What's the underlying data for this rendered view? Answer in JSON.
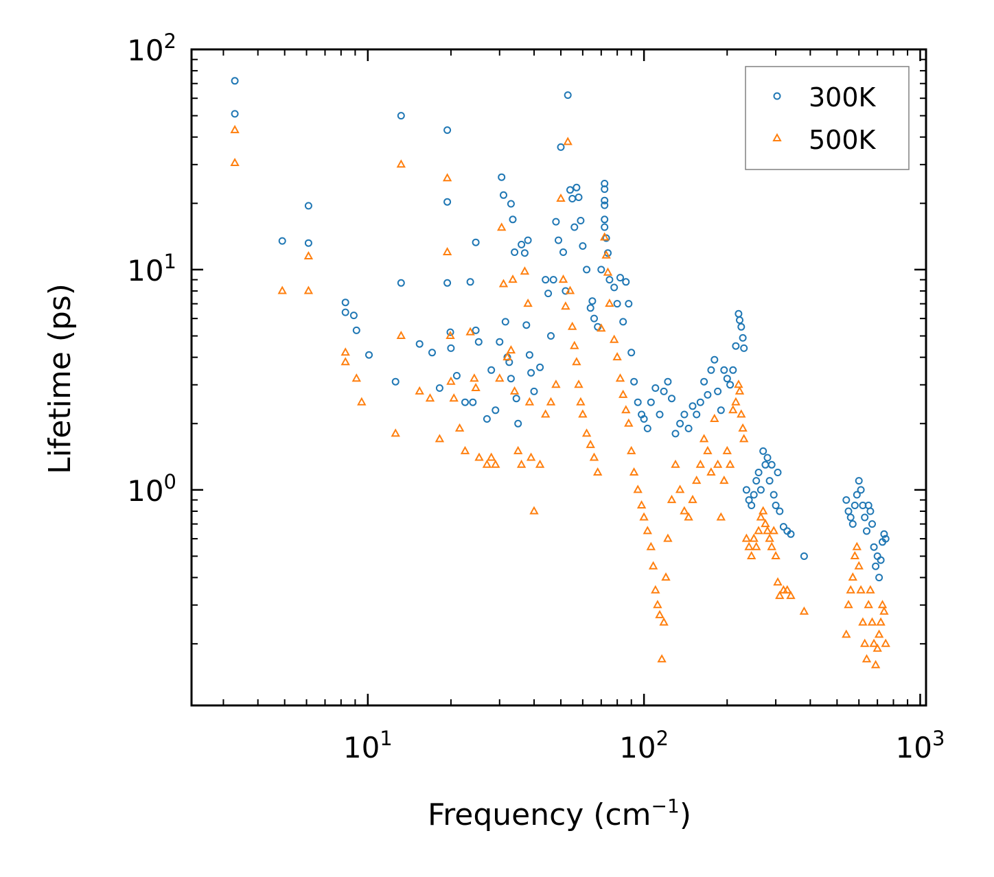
{
  "chart_data": {
    "type": "scatter",
    "title": "",
    "xlabel": "Frequency (cm",
    "xlabel_sup": "−1",
    "xlabel_close": ")",
    "ylabel": "Lifetime (ps)",
    "xscale": "log",
    "yscale": "log",
    "xlim": [
      2.3,
      1050
    ],
    "ylim": [
      0.105,
      100
    ],
    "x_ticks": [
      {
        "value": 10,
        "base": "10",
        "exp": "1"
      },
      {
        "value": 100,
        "base": "10",
        "exp": "2"
      },
      {
        "value": 1000,
        "base": "10",
        "exp": "3"
      }
    ],
    "y_ticks": [
      {
        "value": 1,
        "base": "10",
        "exp": "0"
      },
      {
        "value": 10,
        "base": "10",
        "exp": "1"
      },
      {
        "value": 100,
        "base": "10",
        "exp": "2"
      }
    ],
    "legend_position": "top-right",
    "series": [
      {
        "name": "300K",
        "marker": "circle",
        "color": "#1f77b4",
        "points": [
          [
            3.3,
            72
          ],
          [
            3.3,
            51
          ],
          [
            4.9,
            13.5
          ],
          [
            6.1,
            19.5
          ],
          [
            6.1,
            13.2
          ],
          [
            8.3,
            7.1
          ],
          [
            8.3,
            6.4
          ],
          [
            8.9,
            6.2
          ],
          [
            9.1,
            5.3
          ],
          [
            10.1,
            4.1
          ],
          [
            12.6,
            3.1
          ],
          [
            13.2,
            50
          ],
          [
            13.2,
            8.7
          ],
          [
            15.4,
            4.6
          ],
          [
            17.1,
            4.2
          ],
          [
            18.2,
            2.9
          ],
          [
            19.4,
            43
          ],
          [
            19.4,
            20.3
          ],
          [
            19.4,
            8.7
          ],
          [
            19.9,
            5.2
          ],
          [
            20,
            4.4
          ],
          [
            21,
            3.3
          ],
          [
            22.5,
            2.5
          ],
          [
            23.5,
            8.8
          ],
          [
            24,
            2.5
          ],
          [
            24.6,
            13.3
          ],
          [
            24.6,
            5.3
          ],
          [
            25.2,
            4.7
          ],
          [
            27,
            2.1
          ],
          [
            28,
            3.5
          ],
          [
            29,
            2.3
          ],
          [
            30,
            4.7
          ],
          [
            30.5,
            26.3
          ],
          [
            31,
            21.8
          ],
          [
            31.5,
            5.8
          ],
          [
            32,
            4
          ],
          [
            32.5,
            3.8
          ],
          [
            33,
            19.9
          ],
          [
            33,
            3.2
          ],
          [
            33.5,
            16.9
          ],
          [
            34,
            12
          ],
          [
            34.5,
            2.6
          ],
          [
            35,
            2
          ],
          [
            36,
            13
          ],
          [
            37,
            11.9
          ],
          [
            37.5,
            5.6
          ],
          [
            38,
            13.6
          ],
          [
            38.5,
            4.1
          ],
          [
            39,
            3.4
          ],
          [
            40,
            2.8
          ],
          [
            42,
            3.6
          ],
          [
            44,
            9
          ],
          [
            45,
            7.8
          ],
          [
            46,
            5
          ],
          [
            47,
            9
          ],
          [
            48,
            16.5
          ],
          [
            49,
            13.6
          ],
          [
            50,
            36
          ],
          [
            51,
            12
          ],
          [
            52,
            8
          ],
          [
            53,
            62
          ],
          [
            54,
            23
          ],
          [
            55,
            21
          ],
          [
            56,
            15.6
          ],
          [
            57,
            23.6
          ],
          [
            58,
            21.3
          ],
          [
            59,
            16.7
          ],
          [
            60,
            12.8
          ],
          [
            62,
            10
          ],
          [
            64,
            6.7
          ],
          [
            65,
            7.2
          ],
          [
            66,
            6
          ],
          [
            68,
            5.5
          ],
          [
            70,
            10
          ],
          [
            72,
            24.6
          ],
          [
            72,
            23.2
          ],
          [
            72,
            20.6
          ],
          [
            72,
            19.6
          ],
          [
            72,
            16.9
          ],
          [
            72,
            15.6
          ],
          [
            73,
            13.9
          ],
          [
            74,
            11.9
          ],
          [
            75,
            9
          ],
          [
            78,
            8.3
          ],
          [
            80,
            7
          ],
          [
            82,
            9.2
          ],
          [
            84,
            5.8
          ],
          [
            86,
            8.8
          ],
          [
            88,
            7
          ],
          [
            90,
            4.2
          ],
          [
            92,
            3.1
          ],
          [
            95,
            2.5
          ],
          [
            98,
            2.2
          ],
          [
            100,
            2.1
          ],
          [
            103,
            1.9
          ],
          [
            106,
            2.5
          ],
          [
            110,
            2.9
          ],
          [
            114,
            2.2
          ],
          [
            118,
            2.8
          ],
          [
            122,
            3.1
          ],
          [
            126,
            2.6
          ],
          [
            130,
            1.8
          ],
          [
            135,
            2
          ],
          [
            140,
            2.2
          ],
          [
            145,
            1.9
          ],
          [
            150,
            2.4
          ],
          [
            155,
            2.2
          ],
          [
            160,
            2.5
          ],
          [
            165,
            3.1
          ],
          [
            170,
            2.7
          ],
          [
            175,
            3.5
          ],
          [
            180,
            3.9
          ],
          [
            185,
            2.8
          ],
          [
            190,
            2.3
          ],
          [
            195,
            3.5
          ],
          [
            200,
            3.2
          ],
          [
            205,
            3
          ],
          [
            210,
            3.5
          ],
          [
            215,
            4.5
          ],
          [
            220,
            6.3
          ],
          [
            222,
            5.9
          ],
          [
            225,
            5.5
          ],
          [
            228,
            4.9
          ],
          [
            230,
            4.4
          ],
          [
            235,
            1
          ],
          [
            240,
            0.9
          ],
          [
            245,
            0.85
          ],
          [
            250,
            0.95
          ],
          [
            255,
            1.1
          ],
          [
            260,
            1.2
          ],
          [
            265,
            1
          ],
          [
            270,
            1.5
          ],
          [
            275,
            1.3
          ],
          [
            280,
            1.4
          ],
          [
            285,
            1.1
          ],
          [
            290,
            1.3
          ],
          [
            295,
            0.95
          ],
          [
            300,
            0.85
          ],
          [
            305,
            1.2
          ],
          [
            310,
            0.8
          ],
          [
            320,
            0.68
          ],
          [
            330,
            0.65
          ],
          [
            340,
            0.63
          ],
          [
            380,
            0.5
          ],
          [
            540,
            0.9
          ],
          [
            550,
            0.8
          ],
          [
            560,
            0.75
          ],
          [
            570,
            0.7
          ],
          [
            580,
            0.85
          ],
          [
            590,
            0.95
          ],
          [
            600,
            1.1
          ],
          [
            610,
            1
          ],
          [
            620,
            0.85
          ],
          [
            630,
            0.75
          ],
          [
            640,
            0.65
          ],
          [
            650,
            0.85
          ],
          [
            660,
            0.8
          ],
          [
            670,
            0.7
          ],
          [
            680,
            0.55
          ],
          [
            690,
            0.45
          ],
          [
            700,
            0.5
          ],
          [
            710,
            0.4
          ],
          [
            720,
            0.48
          ],
          [
            730,
            0.58
          ],
          [
            740,
            0.63
          ],
          [
            750,
            0.6
          ]
        ]
      },
      {
        "name": "500K",
        "marker": "triangle",
        "color": "#ff7f0e",
        "points": [
          [
            3.3,
            43
          ],
          [
            3.3,
            30.5
          ],
          [
            4.9,
            8
          ],
          [
            6.1,
            11.5
          ],
          [
            6.1,
            8
          ],
          [
            8.3,
            4.2
          ],
          [
            8.3,
            3.8
          ],
          [
            9.1,
            3.2
          ],
          [
            9.5,
            2.5
          ],
          [
            12.6,
            1.8
          ],
          [
            13.2,
            30
          ],
          [
            13.2,
            5
          ],
          [
            15.4,
            2.8
          ],
          [
            16.8,
            2.6
          ],
          [
            18.2,
            1.7
          ],
          [
            19.4,
            26
          ],
          [
            19.4,
            12
          ],
          [
            19.9,
            5
          ],
          [
            20,
            3.1
          ],
          [
            20.5,
            2.6
          ],
          [
            21.5,
            1.9
          ],
          [
            22.5,
            1.5
          ],
          [
            23.5,
            5.2
          ],
          [
            24.3,
            3.2
          ],
          [
            24.6,
            2.9
          ],
          [
            25.3,
            1.4
          ],
          [
            27,
            1.3
          ],
          [
            28,
            1.4
          ],
          [
            29,
            1.3
          ],
          [
            30,
            3.2
          ],
          [
            30.5,
            15.5
          ],
          [
            31,
            8.6
          ],
          [
            32,
            4
          ],
          [
            33,
            4.3
          ],
          [
            33.5,
            9
          ],
          [
            34,
            2.8
          ],
          [
            35,
            1.5
          ],
          [
            36,
            1.3
          ],
          [
            37,
            9.8
          ],
          [
            38,
            7
          ],
          [
            38.5,
            2.5
          ],
          [
            39,
            1.4
          ],
          [
            40,
            0.8
          ],
          [
            42,
            1.3
          ],
          [
            44,
            2.2
          ],
          [
            46,
            2.5
          ],
          [
            48,
            3
          ],
          [
            50,
            21
          ],
          [
            51,
            9
          ],
          [
            52,
            6.8
          ],
          [
            53,
            38
          ],
          [
            54,
            8
          ],
          [
            55,
            5.5
          ],
          [
            56,
            4.5
          ],
          [
            57,
            3.8
          ],
          [
            58,
            3
          ],
          [
            59,
            2.5
          ],
          [
            60,
            2.2
          ],
          [
            62,
            1.8
          ],
          [
            64,
            1.6
          ],
          [
            66,
            1.4
          ],
          [
            68,
            1.2
          ],
          [
            70,
            5.4
          ],
          [
            72,
            14
          ],
          [
            73,
            11.6
          ],
          [
            74,
            9.7
          ],
          [
            75,
            7
          ],
          [
            78,
            4.8
          ],
          [
            80,
            4
          ],
          [
            82,
            3.2
          ],
          [
            84,
            2.7
          ],
          [
            86,
            2.3
          ],
          [
            88,
            2
          ],
          [
            90,
            1.5
          ],
          [
            92,
            1.2
          ],
          [
            95,
            1
          ],
          [
            98,
            0.85
          ],
          [
            100,
            0.75
          ],
          [
            103,
            0.65
          ],
          [
            106,
            0.55
          ],
          [
            108,
            0.45
          ],
          [
            110,
            0.35
          ],
          [
            112,
            0.3
          ],
          [
            114,
            0.27
          ],
          [
            116,
            0.17
          ],
          [
            118,
            0.25
          ],
          [
            120,
            0.4
          ],
          [
            122,
            0.6
          ],
          [
            126,
            0.9
          ],
          [
            130,
            1.3
          ],
          [
            135,
            1
          ],
          [
            140,
            0.8
          ],
          [
            145,
            0.75
          ],
          [
            150,
            0.9
          ],
          [
            155,
            1.1
          ],
          [
            160,
            1.3
          ],
          [
            165,
            1.7
          ],
          [
            170,
            1.5
          ],
          [
            175,
            1.2
          ],
          [
            180,
            2.1
          ],
          [
            185,
            1.3
          ],
          [
            190,
            0.75
          ],
          [
            195,
            1.1
          ],
          [
            200,
            1.5
          ],
          [
            205,
            1.3
          ],
          [
            210,
            2.3
          ],
          [
            215,
            2.5
          ],
          [
            220,
            3
          ],
          [
            222,
            2.8
          ],
          [
            225,
            2.2
          ],
          [
            228,
            1.9
          ],
          [
            230,
            1.7
          ],
          [
            235,
            0.6
          ],
          [
            240,
            0.55
          ],
          [
            245,
            0.5
          ],
          [
            250,
            0.6
          ],
          [
            255,
            0.55
          ],
          [
            260,
            0.65
          ],
          [
            265,
            0.75
          ],
          [
            270,
            0.8
          ],
          [
            275,
            0.7
          ],
          [
            280,
            0.65
          ],
          [
            285,
            0.6
          ],
          [
            290,
            0.55
          ],
          [
            295,
            0.65
          ],
          [
            300,
            0.5
          ],
          [
            305,
            0.38
          ],
          [
            310,
            0.33
          ],
          [
            320,
            0.35
          ],
          [
            330,
            0.35
          ],
          [
            340,
            0.33
          ],
          [
            380,
            0.28
          ],
          [
            540,
            0.22
          ],
          [
            550,
            0.3
          ],
          [
            560,
            0.35
          ],
          [
            570,
            0.4
          ],
          [
            580,
            0.5
          ],
          [
            590,
            0.55
          ],
          [
            600,
            0.45
          ],
          [
            610,
            0.35
          ],
          [
            620,
            0.25
          ],
          [
            630,
            0.2
          ],
          [
            640,
            0.17
          ],
          [
            650,
            0.3
          ],
          [
            660,
            0.35
          ],
          [
            670,
            0.25
          ],
          [
            680,
            0.2
          ],
          [
            690,
            0.16
          ],
          [
            700,
            0.19
          ],
          [
            710,
            0.22
          ],
          [
            720,
            0.25
          ],
          [
            730,
            0.3
          ],
          [
            740,
            0.28
          ],
          [
            750,
            0.2
          ]
        ]
      }
    ]
  }
}
